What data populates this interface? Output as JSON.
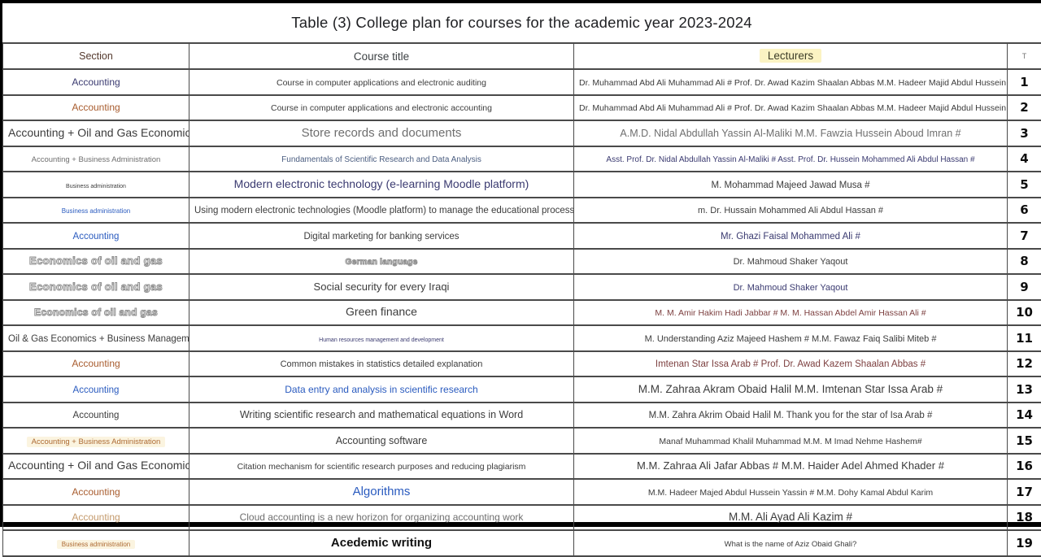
{
  "page": {
    "title": "Table (3) College plan for courses for the academic year 2023-2024"
  },
  "table": {
    "headers": {
      "section": "Section",
      "course": "Course title",
      "lecturers": "Lecturers",
      "number": "T"
    },
    "accent_colors": {
      "lecturers_header_highlight": "#fbf3c3",
      "section_highlight": "#fbf4e0",
      "navy": "#3a3a70",
      "blue": "#2a5bbf",
      "orange": "#a85c2e",
      "maroon": "#7d4040"
    },
    "rows": [
      {
        "no": "1",
        "sec": "Accounting",
        "sec_cls": "c-navy f12",
        "course": "Course in computer applications and electronic auditing",
        "course_cls": "c-dark f105",
        "lect": "Dr. Muhammad Abd Ali Muhammad Ali # Prof. Dr. Awad Kazim Shaalan Abbas M.M. Hadeer Majid Abdul Hussein Yassin",
        "lect_cls": "c-dark f105"
      },
      {
        "no": "2",
        "sec": "Accounting",
        "sec_cls": "c-orange f12",
        "course": "Course in computer applications and electronic accounting",
        "course_cls": "c-dark f105",
        "lect": "Dr. Muhammad Abd Ali Muhammad Ali # Prof. Dr. Awad Kazim Shaalan Abbas M.M. Hadeer Majid Abdul Hussein Yassin",
        "lect_cls": "c-dark f105"
      },
      {
        "no": "3",
        "sec": "Accounting + Oil and Gas Economics",
        "sec_cls": "c-dark f14",
        "course": "Store records and documents",
        "course_cls": "c-gray f15",
        "lect": "A.M.D. Nidal Abdullah Yassin Al-Maliki M.M. Fawzia Hussein Aboud Imran #",
        "lect_cls": "c-gray f125",
        "lect_cls2": ""
      },
      {
        "no": "4",
        "sec": "Accounting + Business Administration",
        "sec_cls": "c-gray f9",
        "course": "Fundamentals of Scientific Research and Data Analysis",
        "course_cls": "c-slate f10",
        "lect": "Asst. Prof. Dr. Nidal Abdullah Yassin Al-Maliki # Asst. Prof. Dr. Hussein Mohammed Ali Abdul Hassan #",
        "lect_cls": "c-navy f10"
      },
      {
        "no": "5",
        "sec": "Business administration",
        "sec_cls": "c-dark f7",
        "course": "Modern electronic technology (e-learning Moodle platform)",
        "course_cls": "c-navy f14",
        "lect": "M. Mohammad Majeed Jawad Musa #",
        "lect_cls": "c-dark f115"
      },
      {
        "no": "6",
        "sec": "Business administration",
        "sec_cls": "c-blue f8",
        "course": "Using modern electronic technologies (Moodle platform) to manage the educational process",
        "course_cls": "c-dark f115",
        "lect": "m. Dr. Hussain Mohammed Ali Abdul Hassan #",
        "lect_cls": "c-dark f11"
      },
      {
        "no": "7",
        "sec": "Accounting",
        "sec_cls": "c-blue f115",
        "course": "Digital marketing for banking services",
        "course_cls": "c-dark f115",
        "lect": "Mr. Ghazi Faisal Mohammed Ali #",
        "lect_cls": "c-navy f115"
      },
      {
        "no": "8",
        "sec": "Economics of oil and gas",
        "sec_cls": "c-outline f13",
        "course": "German language",
        "course_cls": "c-outline f10",
        "lect": "Dr. Mahmoud Shaker Yaqout",
        "lect_cls": "c-dark f11"
      },
      {
        "no": "9",
        "sec": "Economics of oil and gas",
        "sec_cls": "c-outline f13",
        "course": "Social security for every Iraqi",
        "course_cls": "c-dark f13",
        "lect": "Dr. Mahmoud Shaker Yaqout",
        "lect_cls": "c-navy f11"
      },
      {
        "no": "10",
        "sec": "Economics of oil and gas",
        "sec_cls": "c-outline f12",
        "course": "Green finance",
        "course_cls": "c-dark f14",
        "lect": "M. M. Amir Hakim Hadi Jabbar # M. M. Hassan Abdel Amir Hassan Ali #",
        "lect_cls": "c-maroon f105"
      },
      {
        "no": "11",
        "sec": "Oil & Gas Economics + Business Management |",
        "sec_cls": "c-dark f115",
        "course": "Human resources management and development",
        "course_cls": "c-navy f7",
        "lect": "M. Understanding Aziz Majeed Hashem # M.M. Fawaz Faiq Salibi Miteb #",
        "lect_cls": "c-dark f11"
      },
      {
        "no": "12",
        "sec": "Accounting",
        "sec_cls": "c-orange f12",
        "course": "Common mistakes in statistics detailed explanation",
        "course_cls": "c-dark f11",
        "lect": "Imtenan Star Issa Arab # Prof. Dr. Awad Kazem Shaalan Abbas #",
        "lect_cls": "c-maroon f115"
      },
      {
        "no": "13",
        "sec": "Accounting",
        "sec_cls": "c-blue f115",
        "course": "Data entry and analysis in scientific research",
        "course_cls": "c-blue f12",
        "lect": "M.M. Zahraa Akram Obaid Halil M.M. Imtenan Star Issa Arab #",
        "lect_cls": "c-dark f135"
      },
      {
        "no": "14",
        "sec": "Accounting",
        "sec_cls": "c-dark f115",
        "course": "Writing scientific research and mathematical equations in Word",
        "course_cls": "c-dark f125",
        "lect": "M.M. Zahra Akrim Obaid Halil M. Thank you for the star of Isa Arab #",
        "lect_cls": "c-dark f115"
      },
      {
        "no": "15",
        "sec": "Accounting + Business Administration",
        "sec_cls": "c-orangehl f9",
        "course": "Accounting software",
        "course_cls": "c-dark f125",
        "lect": "Manaf Muhammad Khalil Muhammad M.M. M Imad Nehme Hashem#",
        "lect_cls": "c-dark f105"
      },
      {
        "no": "16",
        "sec": "Accounting + Oil and Gas Economics",
        "sec_cls": "c-dark f14",
        "course": "Citation mechanism for scientific research purposes and reducing plagiarism",
        "course_cls": "c-dark f105",
        "lect": "M.M. Zahraa Ali Jafar Abbas # M.M. Haider Adel Ahmed Khader #",
        "lect_cls": "c-dark f13"
      },
      {
        "no": "17",
        "sec": "Accounting",
        "sec_cls": "c-orange f12",
        "course": "Algorithms",
        "course_cls": "c-blue f15",
        "lect": "M.M. Hadeer Majed Abdul Hussein Yassin # M.M. Dohy Kamal Abdul Karim",
        "lect_cls": "c-dark f105"
      },
      {
        "no": "18",
        "sec": "Accounting",
        "sec_cls": "c-tan f12",
        "course": "Cloud accounting is a new horizon for organizing accounting work",
        "course_cls": "c-gray f12",
        "lect": "M.M. Ali Ayad Ali Kazim #",
        "lect_cls": "c-dark f135"
      },
      {
        "no": "19",
        "sec": "Business administration",
        "sec_cls": "c-orangehl f8",
        "course": "Acedemic writing",
        "course_cls": "c-blackbold f15",
        "lect": "What is the name of Aziz Obaid Ghali?",
        "lect_cls": "c-dark f9"
      }
    ]
  }
}
